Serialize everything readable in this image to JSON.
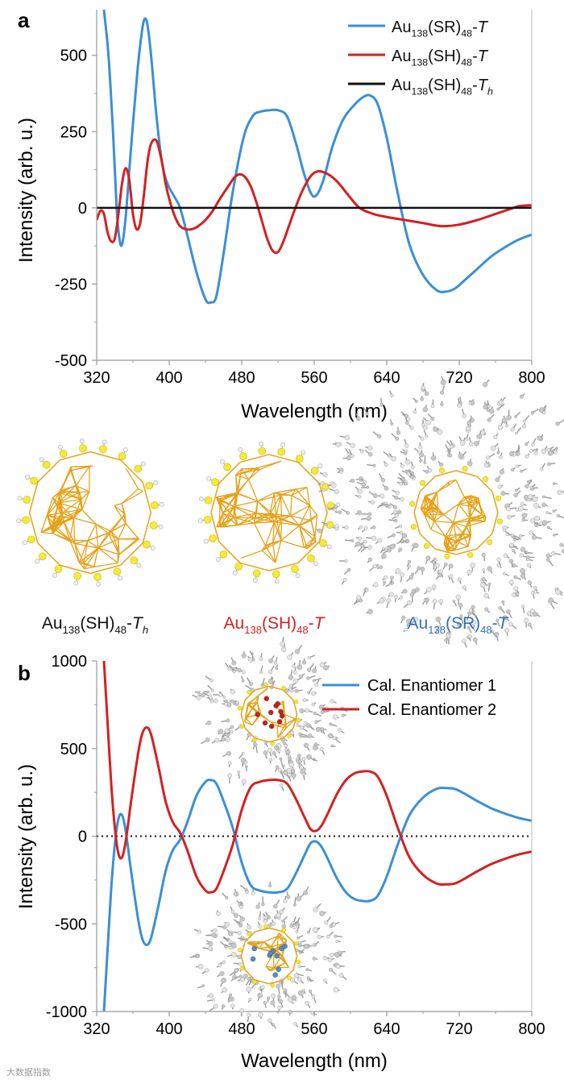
{
  "chart_data": [
    {
      "type": "line",
      "panel_label": "a",
      "xlabel": "Wavelength (nm)",
      "ylabel": "Intensity (arb. u.)",
      "xlim": [
        320,
        800
      ],
      "ylim": [
        -500,
        650
      ],
      "xticks": [
        "320",
        "400",
        "480",
        "560",
        "640",
        "720",
        "800"
      ],
      "yticks": [
        "-500",
        "-250",
        "0",
        "250",
        "500"
      ],
      "legend_position": "top-right",
      "series": [
        {
          "name": "Au138(SR)48-T",
          "legend": {
            "base": "Au",
            "sub1": "138",
            "mid": "(SR)",
            "sub2": "48",
            "suffix": "-",
            "ital": "T",
            "ital_sub": ""
          },
          "color": "#3a8fd6",
          "x": [
            328,
            333,
            338,
            342,
            345,
            348,
            352,
            358,
            365,
            370,
            373,
            376,
            380,
            386,
            392,
            398,
            405,
            412,
            420,
            430,
            440,
            446,
            452,
            460,
            470,
            482,
            492,
            500,
            510,
            520,
            530,
            540,
            548,
            556,
            562,
            570,
            580,
            592,
            605,
            615,
            622,
            630,
            640,
            652,
            665,
            680,
            695,
            705,
            715,
            725,
            740,
            755,
            770,
            785,
            800
          ],
          "y": [
            650,
            500,
            250,
            0,
            -100,
            -120,
            -30,
            200,
            450,
            580,
            620,
            600,
            500,
            300,
            150,
            80,
            40,
            0,
            -90,
            -210,
            -300,
            -310,
            -290,
            -150,
            50,
            230,
            300,
            315,
            320,
            320,
            300,
            210,
            120,
            50,
            40,
            90,
            200,
            290,
            340,
            365,
            368,
            340,
            230,
            50,
            -120,
            -220,
            -270,
            -275,
            -265,
            -240,
            -200,
            -160,
            -130,
            -105,
            -88
          ]
        },
        {
          "name": "Au138(SH)48-T",
          "legend": {
            "base": "Au",
            "sub1": "138",
            "mid": "(SH)",
            "sub2": "48",
            "suffix": "-",
            "ital": "T",
            "ital_sub": ""
          },
          "color": "#d42020",
          "x": [
            320,
            324,
            328,
            332,
            336,
            340,
            344,
            348,
            352,
            356,
            360,
            364,
            368,
            372,
            376,
            380,
            386,
            392,
            396,
            400,
            404,
            408,
            412,
            418,
            425,
            432,
            440,
            448,
            456,
            465,
            472,
            478,
            484,
            490,
            496,
            502,
            508,
            514,
            520,
            526,
            532,
            538,
            546,
            554,
            560,
            566,
            572,
            578,
            584,
            590,
            598,
            610,
            625,
            640,
            660,
            680,
            700,
            720,
            740,
            760,
            775,
            785,
            795,
            800
          ],
          "y": [
            -40,
            -10,
            -20,
            -80,
            -110,
            -100,
            -20,
            80,
            130,
            90,
            -20,
            -70,
            -50,
            40,
            150,
            210,
            220,
            150,
            80,
            30,
            -10,
            -40,
            -60,
            -70,
            -70,
            -60,
            -40,
            -10,
            30,
            70,
            100,
            110,
            100,
            70,
            20,
            -40,
            -100,
            -140,
            -145,
            -110,
            -60,
            -10,
            50,
            95,
            115,
            120,
            115,
            105,
            90,
            70,
            40,
            0,
            -20,
            -30,
            -40,
            -50,
            -60,
            -55,
            -40,
            -20,
            -5,
            5,
            8,
            8
          ]
        },
        {
          "name": "Au138(SH)48-Th",
          "legend": {
            "base": "Au",
            "sub1": "138",
            "mid": "(SH)",
            "sub2": "48",
            "suffix": "-",
            "ital": "T",
            "ital_sub": "h"
          },
          "color": "#111111",
          "x": [
            320,
            800
          ],
          "y": [
            0,
            0
          ]
        }
      ]
    },
    {
      "type": "line",
      "panel_label": "b",
      "xlabel": "Wavelength (nm)",
      "ylabel": "Intensity (arb. u.)",
      "xlim": [
        320,
        800
      ],
      "ylim": [
        -1000,
        1000
      ],
      "xticks": [
        "320",
        "400",
        "480",
        "560",
        "640",
        "720",
        "800"
      ],
      "yticks": [
        "-1000",
        "-500",
        "0",
        "500",
        "1000"
      ],
      "zero_line": "dotted",
      "legend_position": "top-right",
      "series": [
        {
          "name": "Cal. Enantiomer 1",
          "color": "#3a8fd6",
          "x": [
            328,
            332,
            336,
            340,
            344,
            348,
            352,
            358,
            365,
            370,
            375,
            380,
            388,
            396,
            404,
            412,
            420,
            430,
            440,
            446,
            452,
            460,
            470,
            480,
            490,
            500,
            510,
            520,
            530,
            540,
            550,
            556,
            562,
            568,
            575,
            585,
            595,
            605,
            615,
            622,
            630,
            640,
            652,
            665,
            680,
            695,
            705,
            715,
            725,
            740,
            755,
            770,
            785,
            800
          ],
          "y": [
            -1000,
            -650,
            -300,
            -50,
            100,
            120,
            30,
            -200,
            -450,
            -580,
            -620,
            -580,
            -400,
            -200,
            -80,
            -20,
            80,
            230,
            310,
            320,
            300,
            200,
            50,
            -150,
            -280,
            -310,
            -320,
            -320,
            -300,
            -210,
            -100,
            -40,
            -30,
            -60,
            -130,
            -240,
            -320,
            -360,
            -370,
            -368,
            -340,
            -230,
            -50,
            120,
            220,
            270,
            275,
            270,
            245,
            200,
            160,
            130,
            105,
            88
          ]
        },
        {
          "name": "Cal. Enantiomer 2",
          "color": "#d42020",
          "x": [
            328,
            332,
            336,
            340,
            344,
            348,
            352,
            358,
            365,
            370,
            375,
            380,
            388,
            396,
            404,
            412,
            420,
            430,
            440,
            446,
            452,
            460,
            470,
            480,
            490,
            500,
            510,
            520,
            530,
            540,
            550,
            556,
            562,
            568,
            575,
            585,
            595,
            605,
            615,
            622,
            630,
            640,
            652,
            665,
            680,
            695,
            705,
            715,
            725,
            740,
            755,
            770,
            785,
            800
          ],
          "y": [
            1000,
            650,
            300,
            50,
            -100,
            -120,
            -30,
            200,
            450,
            580,
            620,
            580,
            400,
            200,
            80,
            20,
            -80,
            -230,
            -310,
            -320,
            -300,
            -200,
            -50,
            150,
            280,
            310,
            320,
            320,
            300,
            210,
            100,
            40,
            30,
            60,
            130,
            240,
            320,
            360,
            370,
            368,
            340,
            230,
            50,
            -120,
            -220,
            -270,
            -275,
            -270,
            -245,
            -200,
            -160,
            -130,
            -105,
            -88
          ]
        }
      ]
    }
  ],
  "structures": {
    "labels": [
      {
        "base": "Au",
        "sub1": "138",
        "mid": "(SH)",
        "sub2": "48",
        "suffix": "-",
        "ital": "T",
        "ital_sub": "h",
        "color": "#111111"
      },
      {
        "base": "Au",
        "sub1": "138",
        "mid": "(SH)",
        "sub2": "48",
        "suffix": "-",
        "ital": "T",
        "ital_sub": "",
        "color": "#d42020"
      },
      {
        "base": "Au",
        "sub1": "138",
        "mid": "(SR)",
        "sub2": "48",
        "suffix": "-",
        "ital": "T",
        "ital_sub": "",
        "color": "#2f6fb6"
      }
    ]
  },
  "watermark": "大数据指数"
}
